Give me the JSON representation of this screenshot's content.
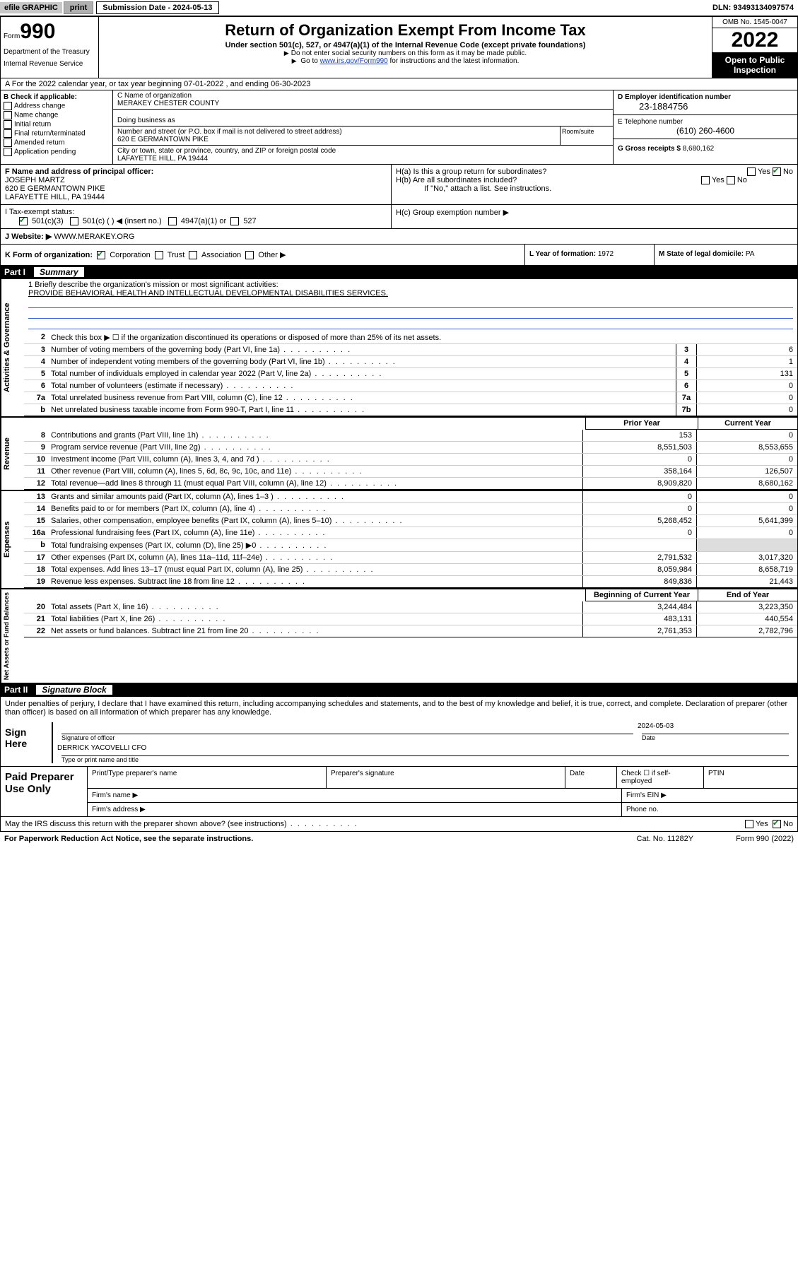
{
  "topbar": {
    "efile": "efile GRAPHIC",
    "print": "print",
    "subdate_label": "Submission Date - 2024-05-13",
    "dln": "DLN: 93493134097574"
  },
  "header": {
    "form_label": "Form",
    "form_num": "990",
    "dept": "Department of the Treasury",
    "irs": "Internal Revenue Service",
    "title": "Return of Organization Exempt From Income Tax",
    "sub": "Under section 501(c), 527, or 4947(a)(1) of the Internal Revenue Code (except private foundations)",
    "note1": "Do not enter social security numbers on this form as it may be made public.",
    "note2_pre": "Go to ",
    "note2_link": "www.irs.gov/Form990",
    "note2_post": " for instructions and the latest information.",
    "omb": "OMB No. 1545-0047",
    "year": "2022",
    "open": "Open to Public Inspection"
  },
  "section_a": "A For the 2022 calendar year, or tax year beginning 07-01-2022   , and ending 06-30-2023",
  "col_b": {
    "label": "B Check if applicable:",
    "items": [
      "Address change",
      "Name change",
      "Initial return",
      "Final return/terminated",
      "Amended return",
      "Application pending"
    ]
  },
  "col_c": {
    "name_label": "C Name of organization",
    "name": "MERAKEY CHESTER COUNTY",
    "dba_label": "Doing business as",
    "street_label": "Number and street (or P.O. box if mail is not delivered to street address)",
    "street": "620 E GERMANTOWN PIKE",
    "room_label": "Room/suite",
    "city_label": "City or town, state or province, country, and ZIP or foreign postal code",
    "city": "LAFAYETTE HILL, PA  19444"
  },
  "col_d": {
    "ein_label": "D Employer identification number",
    "ein": "23-1884756",
    "tel_label": "E Telephone number",
    "tel": "(610) 260-4600",
    "gross_label": "G Gross receipts $",
    "gross": "8,680,162"
  },
  "col_f": {
    "label": "F Name and address of principal officer:",
    "name": "JOSEPH MARTZ",
    "addr1": "620 E GERMANTOWN PIKE",
    "addr2": "LAFAYETTE HILL, PA  19444"
  },
  "col_h": {
    "ha": "H(a)  Is this a group return for subordinates?",
    "hb": "H(b)  Are all subordinates included?",
    "hb_note": "If \"No,\" attach a list. See instructions.",
    "hc": "H(c)  Group exemption number ▶",
    "yes": "Yes",
    "no": "No"
  },
  "row_i": {
    "label": "I   Tax-exempt status:",
    "opts": [
      "501(c)(3)",
      "501(c) (  ) ◀ (insert no.)",
      "4947(a)(1) or",
      "527"
    ]
  },
  "row_j": {
    "label": "J   Website: ▶",
    "val": "WWW.MERAKEY.ORG"
  },
  "row_k": "K Form of organization:",
  "k_opts": [
    "Corporation",
    "Trust",
    "Association",
    "Other ▶"
  ],
  "row_l": {
    "label": "L Year of formation:",
    "val": "1972"
  },
  "row_m": {
    "label": "M State of legal domicile:",
    "val": "PA"
  },
  "parts": {
    "p1": {
      "num": "Part I",
      "title": "Summary"
    },
    "p2": {
      "num": "Part II",
      "title": "Signature Block"
    }
  },
  "mission": {
    "label": "1  Briefly describe the organization's mission or most significant activities:",
    "text": "PROVIDE BEHAVIORAL HEALTH AND INTELLECTUAL DEVELOPMENTAL DISABILITIES SERVICES."
  },
  "gov_lines": [
    {
      "n": "2",
      "t": "Check this box ▶ ☐  if the organization discontinued its operations or disposed of more than 25% of its net assets."
    },
    {
      "n": "3",
      "t": "Number of voting members of the governing body (Part VI, line 1a)",
      "box": "3",
      "v": "6"
    },
    {
      "n": "4",
      "t": "Number of independent voting members of the governing body (Part VI, line 1b)",
      "box": "4",
      "v": "1"
    },
    {
      "n": "5",
      "t": "Total number of individuals employed in calendar year 2022 (Part V, line 2a)",
      "box": "5",
      "v": "131"
    },
    {
      "n": "6",
      "t": "Total number of volunteers (estimate if necessary)",
      "box": "6",
      "v": "0"
    },
    {
      "n": "7a",
      "t": "Total unrelated business revenue from Part VIII, column (C), line 12",
      "box": "7a",
      "v": "0"
    },
    {
      "n": "b",
      "t": "Net unrelated business taxable income from Form 990-T, Part I, line 11",
      "box": "7b",
      "v": "0"
    }
  ],
  "hdr_prior": "Prior Year",
  "hdr_current": "Current Year",
  "rev_lines": [
    {
      "n": "8",
      "t": "Contributions and grants (Part VIII, line 1h)",
      "a": "153",
      "b": "0"
    },
    {
      "n": "9",
      "t": "Program service revenue (Part VIII, line 2g)",
      "a": "8,551,503",
      "b": "8,553,655"
    },
    {
      "n": "10",
      "t": "Investment income (Part VIII, column (A), lines 3, 4, and 7d )",
      "a": "0",
      "b": "0"
    },
    {
      "n": "11",
      "t": "Other revenue (Part VIII, column (A), lines 5, 6d, 8c, 9c, 10c, and 11e)",
      "a": "358,164",
      "b": "126,507"
    },
    {
      "n": "12",
      "t": "Total revenue—add lines 8 through 11 (must equal Part VIII, column (A), line 12)",
      "a": "8,909,820",
      "b": "8,680,162"
    }
  ],
  "exp_lines": [
    {
      "n": "13",
      "t": "Grants and similar amounts paid (Part IX, column (A), lines 1–3 )",
      "a": "0",
      "b": "0"
    },
    {
      "n": "14",
      "t": "Benefits paid to or for members (Part IX, column (A), line 4)",
      "a": "0",
      "b": "0"
    },
    {
      "n": "15",
      "t": "Salaries, other compensation, employee benefits (Part IX, column (A), lines 5–10)",
      "a": "5,268,452",
      "b": "5,641,399"
    },
    {
      "n": "16a",
      "t": "Professional fundraising fees (Part IX, column (A), line 11e)",
      "a": "0",
      "b": "0"
    },
    {
      "n": "b",
      "t": "Total fundraising expenses (Part IX, column (D), line 25) ▶0",
      "a": "",
      "b": "",
      "shade": true
    },
    {
      "n": "17",
      "t": "Other expenses (Part IX, column (A), lines 11a–11d, 11f–24e)",
      "a": "2,791,532",
      "b": "3,017,320"
    },
    {
      "n": "18",
      "t": "Total expenses. Add lines 13–17 (must equal Part IX, column (A), line 25)",
      "a": "8,059,984",
      "b": "8,658,719"
    },
    {
      "n": "19",
      "t": "Revenue less expenses. Subtract line 18 from line 12",
      "a": "849,836",
      "b": "21,443"
    }
  ],
  "hdr_begin": "Beginning of Current Year",
  "hdr_end": "End of Year",
  "net_lines": [
    {
      "n": "20",
      "t": "Total assets (Part X, line 16)",
      "a": "3,244,484",
      "b": "3,223,350"
    },
    {
      "n": "21",
      "t": "Total liabilities (Part X, line 26)",
      "a": "483,131",
      "b": "440,554"
    },
    {
      "n": "22",
      "t": "Net assets or fund balances. Subtract line 21 from line 20",
      "a": "2,761,353",
      "b": "2,782,796"
    }
  ],
  "vlabels": {
    "gov": "Activities & Governance",
    "rev": "Revenue",
    "exp": "Expenses",
    "net": "Net Assets or Fund Balances"
  },
  "sig": {
    "penalty": "Under penalties of perjury, I declare that I have examined this return, including accompanying schedules and statements, and to the best of my knowledge and belief, it is true, correct, and complete. Declaration of preparer (other than officer) is based on all information of which preparer has any knowledge.",
    "sign_here": "Sign Here",
    "sig_officer": "Signature of officer",
    "date_label": "Date",
    "date": "2024-05-03",
    "name": "DERRICK YACOVELLI CFO",
    "name_label": "Type or print name and title",
    "paid": "Paid Preparer Use Only",
    "pt_name": "Print/Type preparer's name",
    "pt_sig": "Preparer's signature",
    "pt_date": "Date",
    "pt_check": "Check ☐ if self-employed",
    "pt_ptin": "PTIN",
    "firm_name": "Firm's name  ▶",
    "firm_ein": "Firm's EIN ▶",
    "firm_addr": "Firm's address ▶",
    "phone": "Phone no.",
    "discuss": "May the IRS discuss this return with the preparer shown above? (see instructions)"
  },
  "footer": {
    "l": "For Paperwork Reduction Act Notice, see the separate instructions.",
    "c": "Cat. No. 11282Y",
    "r": "Form 990 (2022)"
  }
}
